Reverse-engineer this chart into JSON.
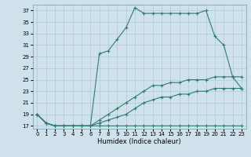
{
  "xlabel": "Humidex (Indice chaleur)",
  "bg_color": "#cfe2ec",
  "grid_color": "#aec8d8",
  "line_color": "#2e7d6e",
  "xlim": [
    -0.5,
    23.5
  ],
  "ylim": [
    16.5,
    38
  ],
  "yticks": [
    17,
    19,
    21,
    23,
    25,
    27,
    29,
    31,
    33,
    35,
    37
  ],
  "xticks": [
    0,
    1,
    2,
    3,
    4,
    5,
    6,
    7,
    8,
    9,
    10,
    11,
    12,
    13,
    14,
    15,
    16,
    17,
    18,
    19,
    20,
    21,
    22,
    23
  ],
  "line1_x": [
    0,
    1,
    2,
    3,
    4,
    5,
    6,
    7,
    8,
    9,
    10,
    11,
    12,
    13,
    14,
    15,
    16,
    17,
    18,
    19,
    20,
    21,
    22,
    23
  ],
  "line1_y": [
    19,
    17.5,
    17,
    17,
    17,
    17,
    17,
    17,
    17,
    17,
    17,
    17,
    17,
    17,
    17,
    17,
    17,
    17,
    17,
    17,
    17,
    17,
    17,
    17
  ],
  "line2_x": [
    0,
    1,
    2,
    3,
    4,
    5,
    6,
    7,
    8,
    9,
    10,
    11,
    12,
    13,
    14,
    15,
    16,
    17,
    18,
    19,
    20,
    21,
    22,
    23
  ],
  "line2_y": [
    19,
    17.5,
    17,
    17,
    17,
    17,
    17,
    17.5,
    18,
    18.5,
    19,
    20,
    21,
    21.5,
    22,
    22,
    22.5,
    22.5,
    23,
    23,
    23.5,
    23.5,
    23.5,
    23.5
  ],
  "line3_x": [
    0,
    1,
    2,
    3,
    4,
    5,
    6,
    7,
    8,
    9,
    10,
    11,
    12,
    13,
    14,
    15,
    16,
    17,
    18,
    19,
    20,
    21,
    22,
    23
  ],
  "line3_y": [
    19,
    17.5,
    17,
    17,
    17,
    17,
    17,
    18,
    19,
    20,
    21,
    22,
    23,
    24,
    24,
    24.5,
    24.5,
    25,
    25,
    25,
    25.5,
    25.5,
    25.5,
    25.5
  ],
  "line4_x": [
    0,
    1,
    2,
    3,
    4,
    5,
    6,
    7,
    8,
    9,
    10,
    11,
    12,
    13,
    14,
    15,
    16,
    17,
    18,
    19,
    20,
    21,
    22,
    23
  ],
  "line4_y": [
    19,
    17.5,
    17,
    17,
    17,
    17,
    17,
    29.5,
    30,
    32,
    34,
    37.5,
    36.5,
    36.5,
    36.5,
    36.5,
    36.5,
    36.5,
    36.5,
    37,
    32.5,
    31,
    25.5,
    23.5
  ]
}
